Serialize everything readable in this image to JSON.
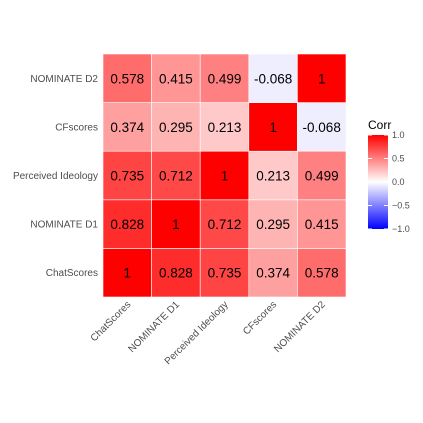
{
  "chart_data": {
    "type": "heatmap",
    "rows": [
      "ChatScores",
      "NOMINATE D1",
      "Perceived Ideology",
      "CFscores",
      "NOMINATE D2"
    ],
    "columns": [
      "ChatScores",
      "NOMINATE D1",
      "Perceived Ideology",
      "CFscores",
      "NOMINATE D2"
    ],
    "values": [
      [
        1,
        0.828,
        0.735,
        0.374,
        0.578
      ],
      [
        0.828,
        1,
        0.712,
        0.295,
        0.415
      ],
      [
        0.735,
        0.712,
        1,
        0.213,
        0.499
      ],
      [
        0.374,
        0.295,
        0.213,
        1,
        -0.068
      ],
      [
        0.578,
        0.415,
        0.499,
        -0.068,
        1
      ]
    ],
    "cell_labels": [
      [
        "1",
        "0.828",
        "0.735",
        "0.374",
        "0.578"
      ],
      [
        "0.828",
        "1",
        "0.712",
        "0.295",
        "0.415"
      ],
      [
        "0.735",
        "0.712",
        "1",
        "0.213",
        "0.499"
      ],
      [
        "0.374",
        "0.295",
        "0.213",
        "1",
        "-0.068"
      ],
      [
        "0.578",
        "0.415",
        "0.499",
        "-0.068",
        "1"
      ]
    ],
    "legend": {
      "title": "Corr",
      "ticks": [
        1.0,
        0.5,
        0.0,
        -0.5,
        -1.0
      ],
      "tick_labels": [
        "1.0",
        "0.5",
        "0.0",
        "−0.5",
        "−1.0"
      ],
      "placement": "right"
    },
    "colors": {
      "high": "#ff0000",
      "mid": "#ffffff",
      "low": "#0000ff"
    },
    "value_range": [
      -1,
      1
    ],
    "grid": false
  }
}
